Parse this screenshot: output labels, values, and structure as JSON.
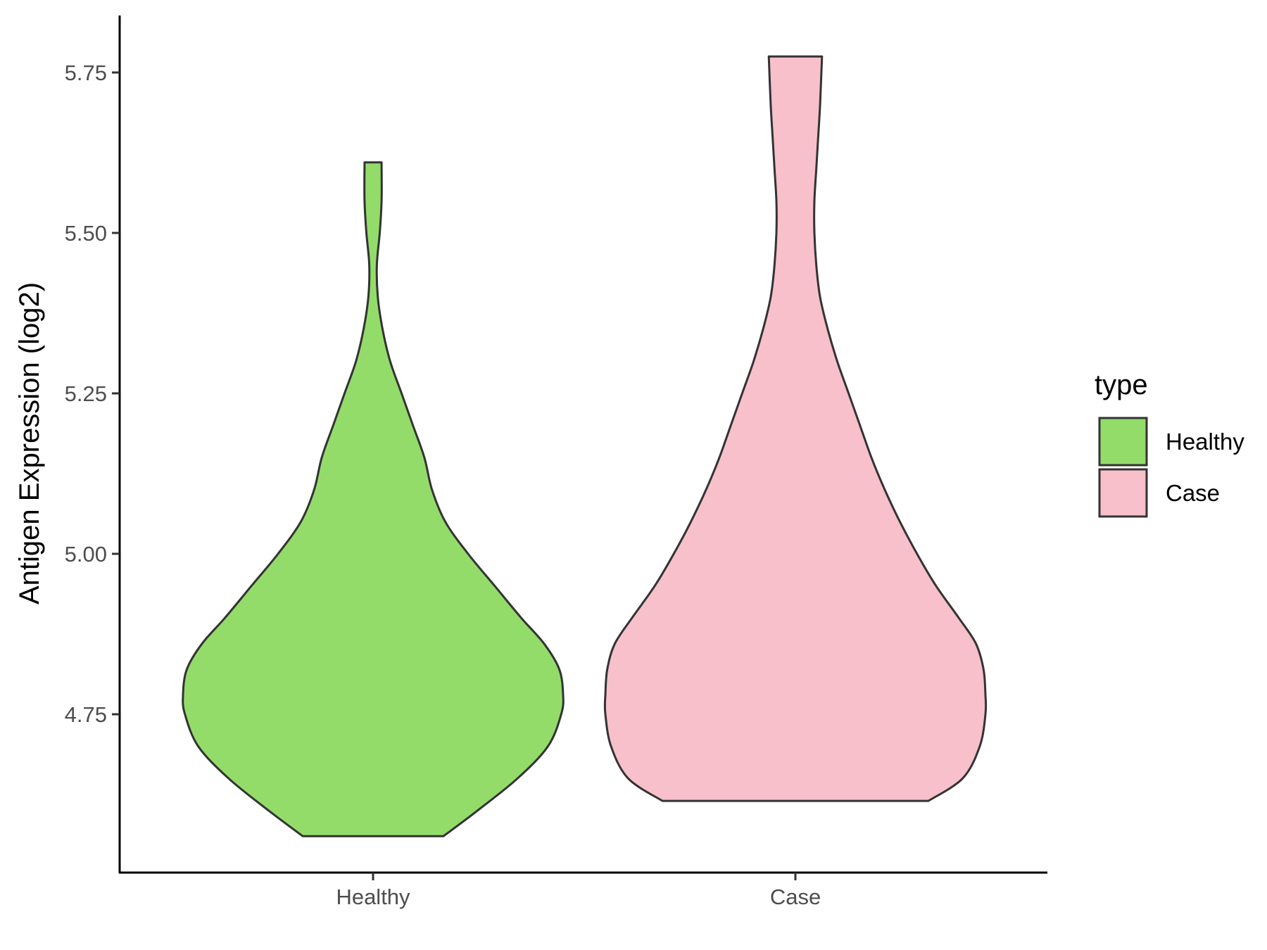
{
  "chart_data": {
    "type": "violin",
    "title": "",
    "xlabel": "",
    "ylabel": "Antigen Expression (log2)",
    "ylim": [
      4.47,
      5.83
    ],
    "y_ticks": [
      4.75,
      5.0,
      5.25,
      5.5,
      5.75
    ],
    "y_tick_labels": [
      "4.75",
      "5.00",
      "5.25",
      "5.50",
      "5.75"
    ],
    "categories": [
      "Healthy",
      "Case"
    ],
    "grid": false,
    "legend": {
      "title": "type",
      "position": "right",
      "entries": [
        "Healthy",
        "Case"
      ]
    },
    "series": [
      {
        "name": "Healthy",
        "color": "#93DC6A",
        "min": 4.56,
        "max": 5.61,
        "density_profile": [
          [
            4.56,
            0.37
          ],
          [
            4.6,
            0.55
          ],
          [
            4.65,
            0.76
          ],
          [
            4.7,
            0.92
          ],
          [
            4.75,
            0.99
          ],
          [
            4.78,
            1.0
          ],
          [
            4.82,
            0.98
          ],
          [
            4.86,
            0.9
          ],
          [
            4.9,
            0.78
          ],
          [
            4.95,
            0.64
          ],
          [
            5.0,
            0.5
          ],
          [
            5.05,
            0.38
          ],
          [
            5.1,
            0.31
          ],
          [
            5.15,
            0.27
          ],
          [
            5.2,
            0.21
          ],
          [
            5.25,
            0.15
          ],
          [
            5.3,
            0.09
          ],
          [
            5.35,
            0.05
          ],
          [
            5.4,
            0.025
          ],
          [
            5.45,
            0.02
          ],
          [
            5.5,
            0.035
          ],
          [
            5.55,
            0.045
          ],
          [
            5.61,
            0.045
          ]
        ]
      },
      {
        "name": "Case",
        "color": "#F7C0CB",
        "min": 4.615,
        "max": 5.775,
        "density_profile": [
          [
            4.615,
            0.7
          ],
          [
            4.65,
            0.88
          ],
          [
            4.7,
            0.97
          ],
          [
            4.75,
            1.0
          ],
          [
            4.78,
            1.0
          ],
          [
            4.82,
            0.99
          ],
          [
            4.86,
            0.95
          ],
          [
            4.9,
            0.86
          ],
          [
            4.95,
            0.74
          ],
          [
            5.0,
            0.64
          ],
          [
            5.05,
            0.55
          ],
          [
            5.1,
            0.47
          ],
          [
            5.15,
            0.4
          ],
          [
            5.2,
            0.34
          ],
          [
            5.25,
            0.28
          ],
          [
            5.3,
            0.22
          ],
          [
            5.35,
            0.17
          ],
          [
            5.4,
            0.13
          ],
          [
            5.45,
            0.11
          ],
          [
            5.5,
            0.1
          ],
          [
            5.55,
            0.1
          ],
          [
            5.6,
            0.11
          ],
          [
            5.65,
            0.12
          ],
          [
            5.7,
            0.13
          ],
          [
            5.775,
            0.14
          ]
        ]
      }
    ]
  }
}
